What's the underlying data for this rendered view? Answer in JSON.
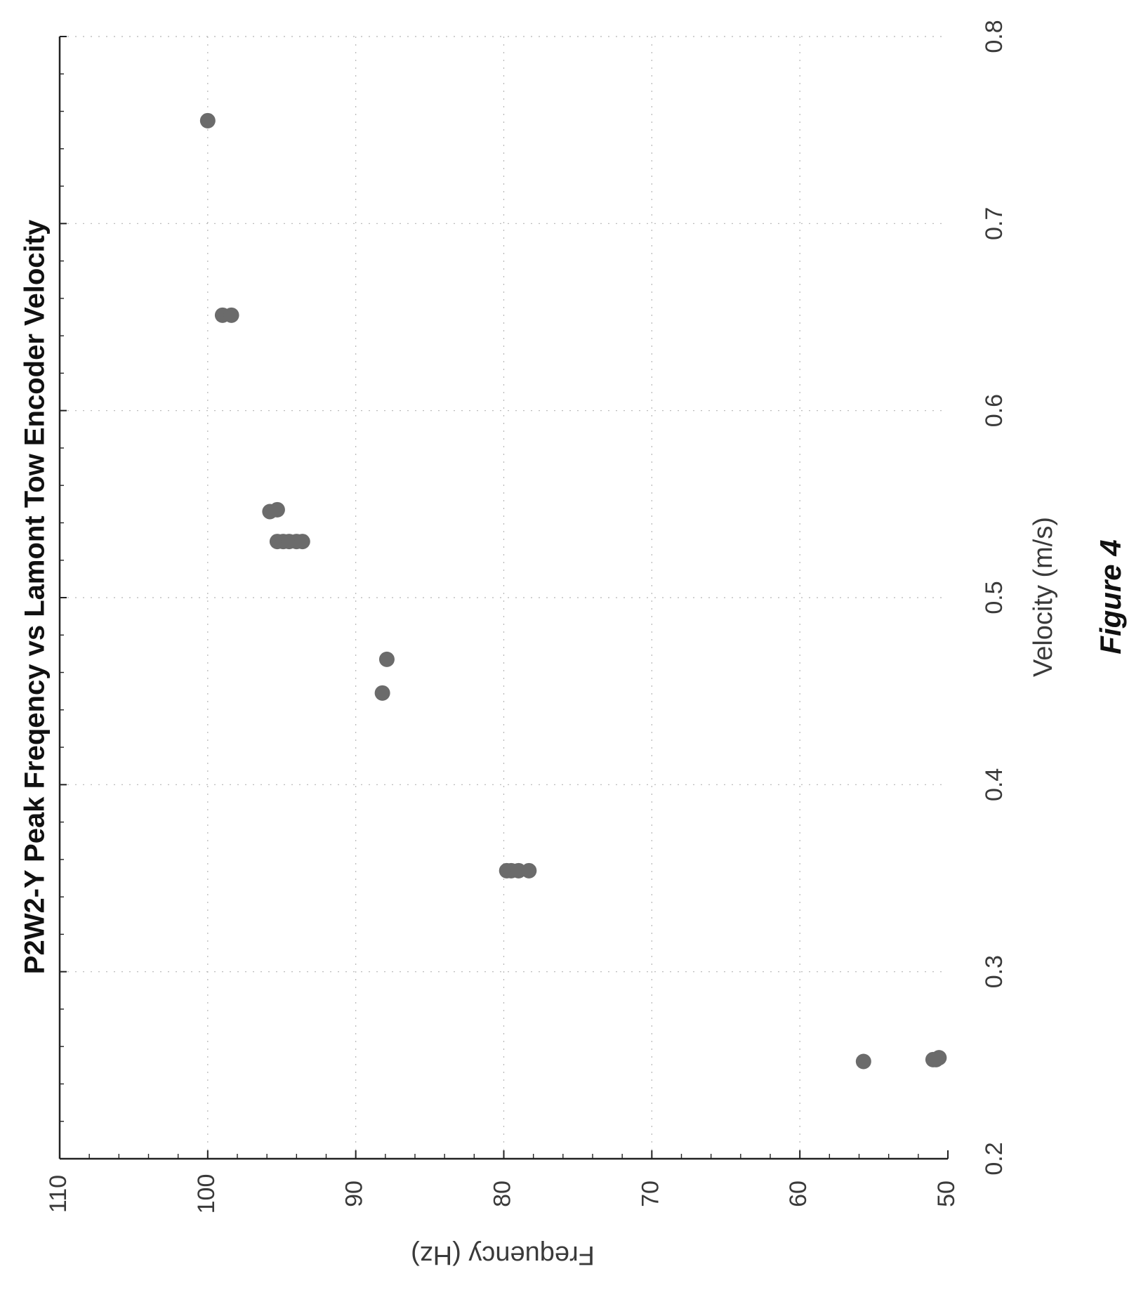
{
  "figure_caption": "Figure 4",
  "chart_data": {
    "type": "scatter",
    "title": "P2W2-Y  Peak Freqency vs Lamont Tow Encoder Velocity",
    "xlabel": "Velocity (m/s)",
    "ylabel": "Frequency (Hz)",
    "xlim": [
      0.2,
      0.8
    ],
    "ylim": [
      50,
      110
    ],
    "xticks": [
      "0.2",
      "0.3",
      "0.4",
      "0.5",
      "0.6",
      "0.7",
      "0.8"
    ],
    "yticks": [
      "50",
      "60",
      "70",
      "80",
      "90",
      "100",
      "110"
    ],
    "grid": true,
    "orientation": "rotated 90 degrees clockwise",
    "marker_color": "#6b6b6b",
    "series": [
      {
        "x": [
          0.252,
          0.253,
          0.253,
          0.254,
          0.354,
          0.354,
          0.354,
          0.354,
          0.449,
          0.467,
          0.53,
          0.53,
          0.53,
          0.53,
          0.53,
          0.546,
          0.547,
          0.651,
          0.651,
          0.755
        ],
        "y": [
          55.7,
          51.0,
          50.8,
          50.6,
          79.8,
          79.5,
          79.0,
          78.3,
          88.2,
          87.9,
          95.3,
          94.9,
          94.5,
          94.0,
          93.6,
          95.8,
          95.3,
          99.0,
          98.4,
          100.0
        ]
      }
    ]
  }
}
